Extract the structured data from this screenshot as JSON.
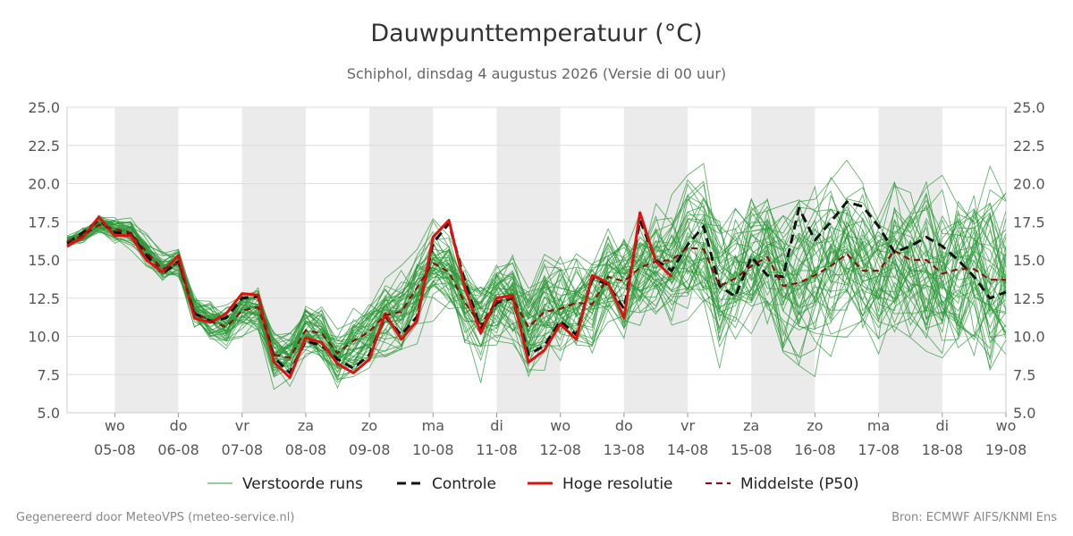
{
  "header": {
    "title": "Dauwpunttemperatuur (°C)",
    "subtitle": "Schiphol, dinsdag  4 augustus 2026 (Versie di 00 uur)"
  },
  "footer": {
    "left": "Gegenereerd door MeteoVPS (meteo-service.nl)",
    "right": "Bron: ECMWF AIFS/KNMI Ens"
  },
  "colors": {
    "ensemble": "#2e9a3a",
    "control": "#111111",
    "high_res": "#e01010",
    "median": "#8b1010",
    "shade": "#ebebeb",
    "grid": "#dddddd"
  },
  "chart_data": {
    "type": "line",
    "title": "Dauwpunttemperatuur (°C)",
    "subtitle": "Schiphol, dinsdag  4 augustus 2026 (Versie di 00 uur)",
    "ylim": [
      5.0,
      25.0
    ],
    "yticks": [
      "5.0",
      "7.5",
      "10.0",
      "12.5",
      "15.0",
      "17.5",
      "20.0",
      "22.5",
      "25.0"
    ],
    "x_unit": "day offset from 05-08 00:00",
    "xlim": [
      -0.75,
      14
    ],
    "xticks": [
      {
        "day": "wo",
        "date": "05-08"
      },
      {
        "day": "do",
        "date": "06-08"
      },
      {
        "day": "vr",
        "date": "07-08"
      },
      {
        "day": "za",
        "date": "08-08"
      },
      {
        "day": "zo",
        "date": "09-08"
      },
      {
        "day": "ma",
        "date": "10-08"
      },
      {
        "day": "di",
        "date": "11-08"
      },
      {
        "day": "wo",
        "date": "12-08"
      },
      {
        "day": "do",
        "date": "13-08"
      },
      {
        "day": "vr",
        "date": "14-08"
      },
      {
        "day": "za",
        "date": "15-08"
      },
      {
        "day": "zo",
        "date": "16-08"
      },
      {
        "day": "ma",
        "date": "17-08"
      },
      {
        "day": "di",
        "date": "18-08"
      },
      {
        "day": "wo",
        "date": "19-08"
      }
    ],
    "shaded_days": [
      0,
      2,
      4,
      6,
      8,
      10,
      12
    ],
    "legend": [
      "Verstoorde runs",
      "Controle",
      "Hoge resolutie",
      "Middelste (P50)"
    ],
    "legend_position": "bottom",
    "grid": true,
    "x": [
      -0.75,
      -0.5,
      -0.25,
      0,
      0.25,
      0.5,
      0.75,
      1,
      1.25,
      1.5,
      1.75,
      2,
      2.25,
      2.5,
      2.75,
      3,
      3.25,
      3.5,
      3.75,
      4,
      4.25,
      4.5,
      4.75,
      5,
      5.25,
      5.5,
      5.75,
      6,
      6.25,
      6.5,
      6.75,
      7,
      7.25,
      7.5,
      7.75,
      8,
      8.25,
      8.5,
      8.75,
      9,
      9.25,
      9.5,
      9.75,
      10,
      10.25,
      10.5,
      10.75,
      11,
      11.25,
      11.5,
      11.75,
      12,
      12.25,
      12.5,
      12.75,
      13,
      13.25,
      13.5,
      13.75,
      14
    ],
    "series": [
      {
        "name": "Hoge resolutie",
        "values": [
          15.9,
          16.5,
          17.8,
          16.6,
          16.6,
          15.0,
          14.2,
          15.3,
          11.2,
          10.9,
          11.5,
          12.8,
          12.7,
          8.3,
          7.3,
          9.9,
          9.6,
          8.2,
          7.6,
          8.5,
          11.5,
          9.8,
          11.0,
          16.5,
          17.6,
          13.2,
          10.2,
          12.5,
          12.7,
          8.3,
          9.1,
          10.8,
          9.8,
          14.0,
          13.5,
          11.2,
          18.1,
          14.9,
          13.9,
          null,
          null,
          null,
          null,
          null,
          null,
          null,
          null,
          null,
          null,
          null,
          null,
          null,
          null,
          null,
          null,
          null,
          null,
          null,
          null,
          null
        ]
      },
      {
        "name": "Controle",
        "values": [
          16.1,
          16.8,
          17.6,
          16.8,
          16.7,
          15.3,
          14.1,
          14.9,
          11.5,
          11.0,
          11.2,
          12.5,
          12.6,
          8.6,
          7.6,
          9.7,
          9.4,
          8.5,
          7.9,
          8.8,
          11.3,
          10.1,
          11.3,
          16.1,
          17.4,
          13.6,
          10.5,
          12.2,
          12.5,
          8.8,
          9.4,
          11.0,
          10.1,
          13.8,
          13.4,
          11.8,
          17.6,
          15.0,
          14.3,
          16.0,
          17.2,
          13.3,
          12.6,
          15.2,
          14.0,
          13.9,
          18.4,
          16.3,
          17.5,
          18.8,
          18.5,
          17.2,
          15.5,
          15.9,
          16.5,
          15.9,
          15.0,
          13.9,
          12.5,
          12.9
        ]
      },
      {
        "name": "Middelste (P50)",
        "values": [
          16.2,
          16.6,
          17.3,
          17.0,
          16.8,
          15.5,
          14.4,
          14.8,
          11.6,
          11.0,
          10.6,
          11.7,
          11.9,
          8.8,
          8.6,
          10.4,
          10.2,
          8.9,
          9.7,
          10.3,
          11.4,
          11.6,
          13.2,
          14.8,
          14.2,
          12.2,
          10.8,
          12.3,
          12.5,
          10.6,
          11.6,
          11.8,
          12.2,
          12.1,
          13.9,
          13.6,
          14.5,
          14.9,
          15.0,
          15.8,
          15.7,
          13.3,
          13.8,
          14.6,
          15.2,
          13.3,
          13.5,
          14.0,
          14.6,
          15.4,
          14.3,
          14.3,
          15.6,
          15.0,
          15.0,
          14.1,
          14.4,
          14.4,
          13.7,
          13.7
        ]
      }
    ],
    "ensemble": {
      "name": "Verstoorde runs",
      "members": 50,
      "note": "individual members not legible; drawn as a pseudo-random band around the median"
    }
  }
}
